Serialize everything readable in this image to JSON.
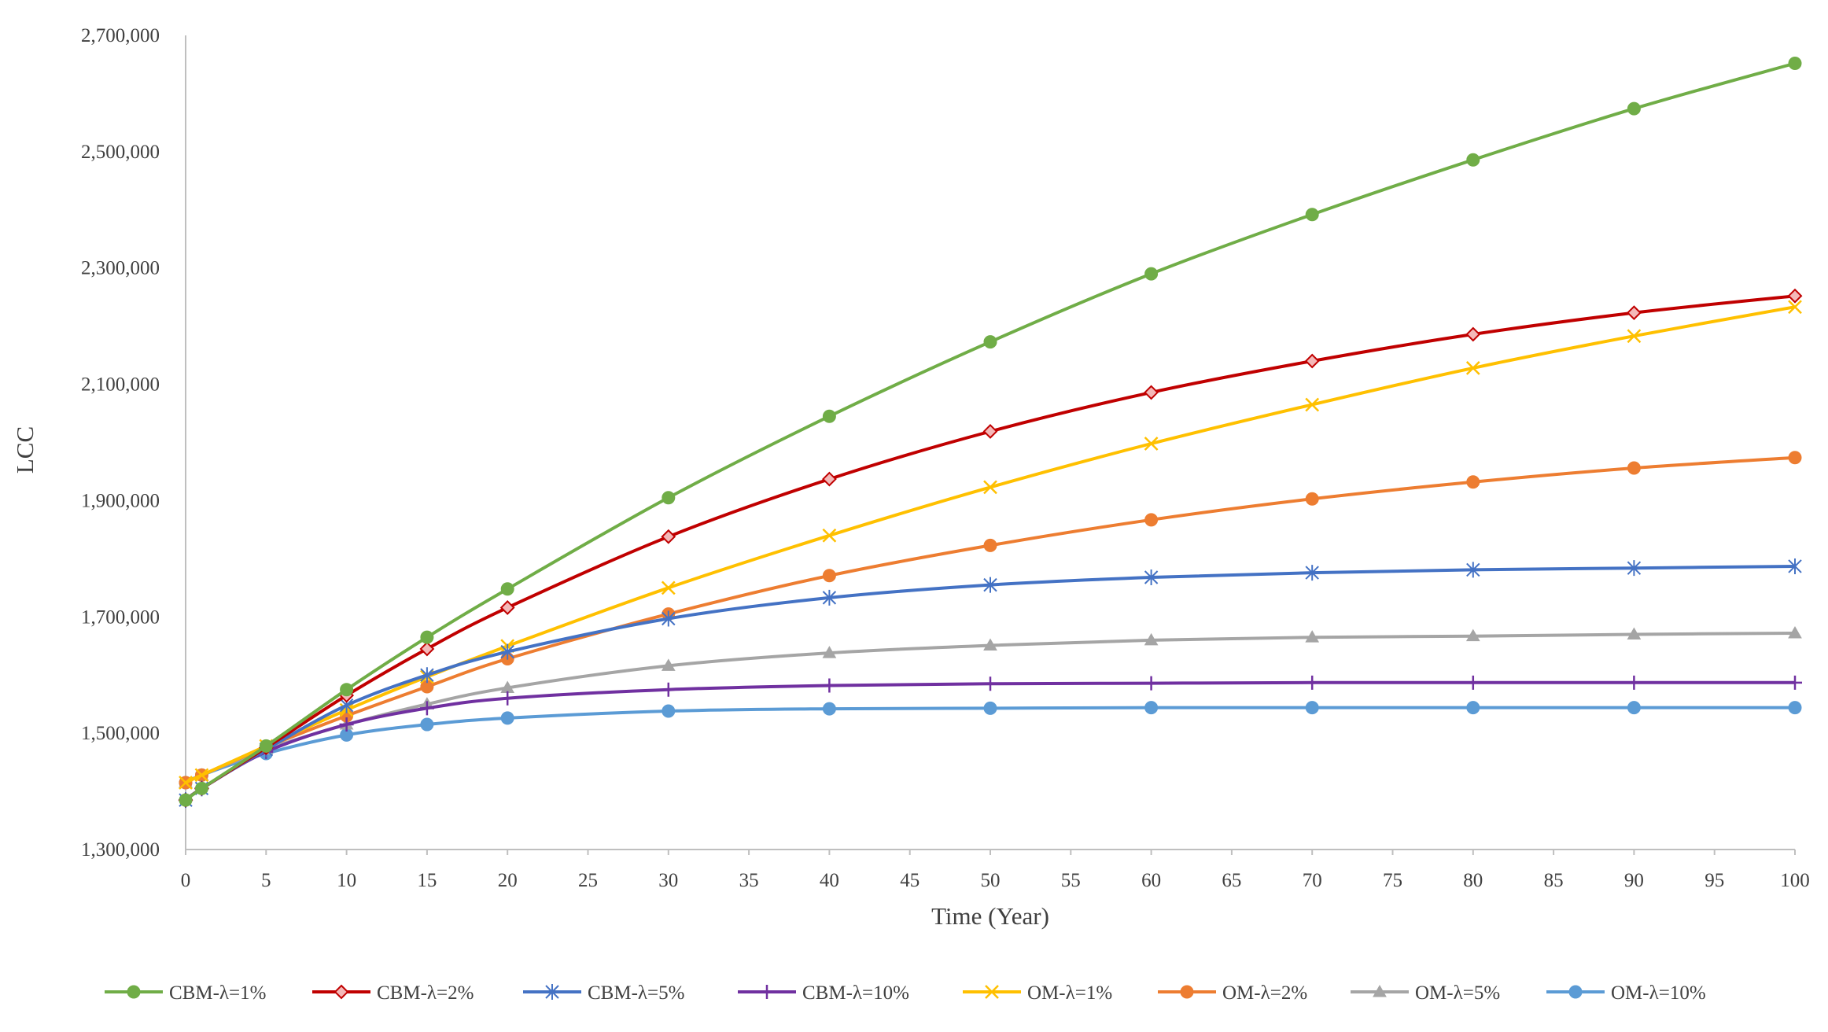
{
  "chart_data": {
    "type": "line",
    "title": "",
    "xlabel": "Time (Year)",
    "ylabel": "LCC",
    "xlim": [
      0,
      100
    ],
    "ylim": [
      1300000,
      2700000
    ],
    "x_ticks": [
      0,
      5,
      10,
      15,
      20,
      25,
      30,
      35,
      40,
      45,
      50,
      55,
      60,
      65,
      70,
      75,
      80,
      85,
      90,
      95,
      100
    ],
    "y_ticks": [
      1300000,
      1500000,
      1700000,
      1900000,
      2100000,
      2300000,
      2500000,
      2700000
    ],
    "y_tick_labels": [
      "1,300,000",
      "1,500,000",
      "1,700,000",
      "1,900,000",
      "2,100,000",
      "2,300,000",
      "2,500,000",
      "2,700,000"
    ],
    "x_tick_labels": [
      "0",
      "5",
      "10",
      "15",
      "20",
      "25",
      "30",
      "35",
      "40",
      "45",
      "50",
      "55",
      "60",
      "65",
      "70",
      "75",
      "80",
      "85",
      "90",
      "95",
      "100"
    ],
    "grid": false,
    "legend_position": "bottom",
    "x": [
      0,
      1,
      5,
      10,
      15,
      20,
      30,
      40,
      50,
      60,
      70,
      80,
      90,
      100
    ],
    "series": [
      {
        "name": "CBM-λ=1%",
        "color": "#70AD47",
        "marker": "circle",
        "values": [
          1385000,
          1405000,
          1478000,
          1575000,
          1665000,
          1748000,
          1905000,
          2045000,
          2173000,
          2290000,
          2392000,
          2486000,
          2574000,
          2652000
        ]
      },
      {
        "name": "CBM-λ=2%",
        "color": "#C00000",
        "marker": "diamond",
        "values": [
          1385000,
          1405000,
          1475000,
          1565000,
          1645000,
          1716000,
          1838000,
          1937000,
          2019000,
          2086000,
          2140000,
          2186000,
          2223000,
          2252000
        ]
      },
      {
        "name": "CBM-λ=5%",
        "color": "#4472C4",
        "marker": "asterisk",
        "values": [
          1385000,
          1405000,
          1472000,
          1548000,
          1600000,
          1640000,
          1697000,
          1733000,
          1755000,
          1768000,
          1776000,
          1781000,
          1784000,
          1787000
        ]
      },
      {
        "name": "CBM-λ=10%",
        "color": "#7030A0",
        "marker": "plus",
        "values": [
          1385000,
          1405000,
          1468000,
          1515000,
          1543000,
          1560000,
          1575000,
          1582000,
          1585000,
          1586000,
          1587000,
          1587000,
          1587000,
          1587000
        ]
      },
      {
        "name": "OM-λ=1%",
        "color": "#FFC000",
        "marker": "x",
        "values": [
          1415000,
          1428000,
          1478000,
          1540000,
          1597000,
          1650000,
          1750000,
          1840000,
          1923000,
          1998000,
          2065000,
          2128000,
          2183000,
          2233000
        ]
      },
      {
        "name": "OM-λ=2%",
        "color": "#ED7D31",
        "marker": "circle",
        "values": [
          1415000,
          1428000,
          1476000,
          1530000,
          1580000,
          1628000,
          1705000,
          1771000,
          1823000,
          1867000,
          1903000,
          1932000,
          1956000,
          1974000
        ]
      },
      {
        "name": "OM-λ=5%",
        "color": "#A5A5A5",
        "marker": "triangle",
        "values": [
          1415000,
          1428000,
          1472000,
          1515000,
          1550000,
          1578000,
          1616000,
          1638000,
          1651000,
          1660000,
          1665000,
          1667000,
          1670000,
          1672000
        ]
      },
      {
        "name": "OM-λ=10%",
        "color": "#5B9BD5",
        "marker": "circle",
        "values": [
          1415000,
          1428000,
          1465000,
          1497000,
          1515000,
          1526000,
          1538000,
          1542000,
          1543000,
          1544000,
          1544000,
          1544000,
          1544000,
          1544000
        ]
      }
    ]
  }
}
